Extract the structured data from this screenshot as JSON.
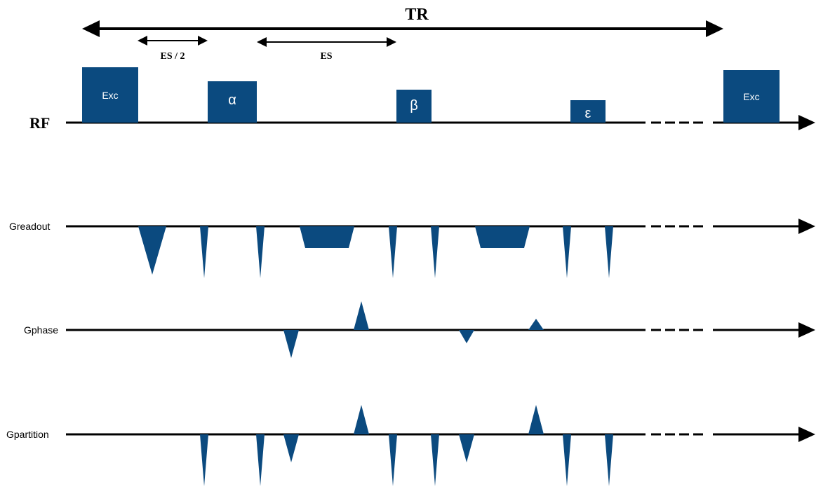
{
  "timing": {
    "tr_label": "TR",
    "es_half_label": "ES / 2",
    "es_label": "ES"
  },
  "axes": {
    "rf": "RF",
    "greadout": "Greadout",
    "gphase": "Gphase",
    "gpartition": "Gpartition"
  },
  "rf_pulses": {
    "exc_first": "Exc",
    "alpha": "α",
    "beta": "β",
    "epsilon": "ε",
    "exc_second": "Exc"
  },
  "colors": {
    "pulse": "#0b4a7f",
    "axis": "#000000"
  }
}
